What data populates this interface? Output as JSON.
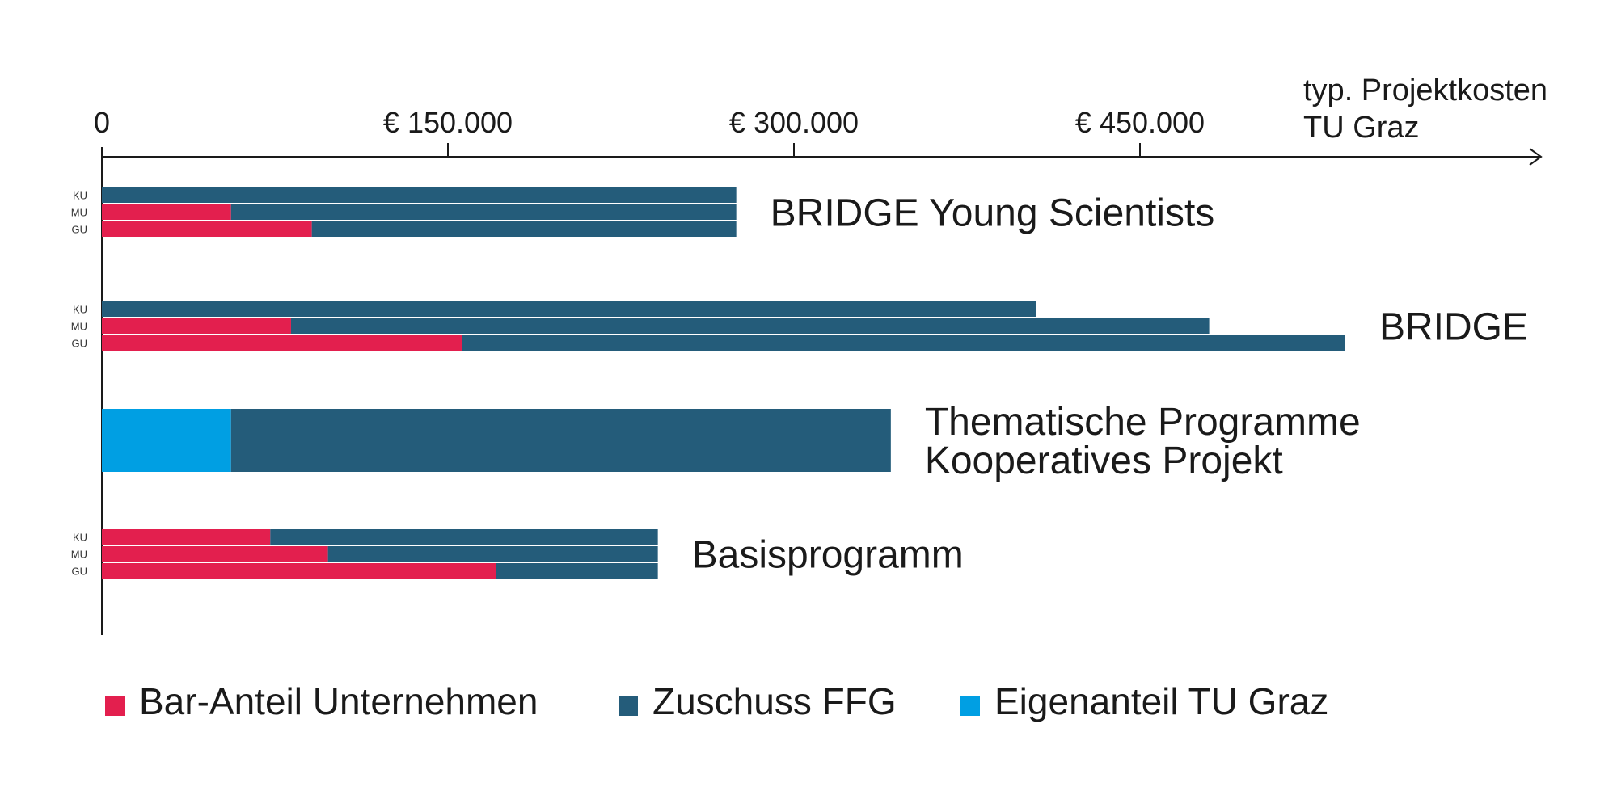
{
  "chart_data": {
    "type": "bar",
    "orientation": "horizontal",
    "stacked": true,
    "xlim": [
      0,
      630000
    ],
    "x_ticks": [
      {
        "value": 0,
        "label": "0"
      },
      {
        "value": 150000,
        "label": "€ 150.000"
      },
      {
        "value": 300000,
        "label": "€ 300.000"
      },
      {
        "value": 450000,
        "label": "€ 450.000"
      }
    ],
    "axis_title": [
      "typ. Projektkosten",
      "TU Graz"
    ],
    "grid": false,
    "legend_position": "bottom-left",
    "series": [
      {
        "key": "bar",
        "name": "Bar-Anteil Unternehmen",
        "color": "#E31F4E"
      },
      {
        "key": "ffg",
        "name": "Zuschuss FFG",
        "color": "#245C7A"
      },
      {
        "key": "eigen",
        "name": "Eigenanteil TU Graz",
        "color": "#009FE3"
      }
    ],
    "groups": [
      {
        "label": [
          "BRIDGE Young Scientists"
        ],
        "rows": [
          {
            "label": "KU",
            "segments": {
              "bar": 0,
              "ffg": 275000
            }
          },
          {
            "label": "MU",
            "segments": {
              "bar": 56000,
              "ffg": 219000
            }
          },
          {
            "label": "GU",
            "segments": {
              "bar": 91000,
              "ffg": 184000
            }
          }
        ]
      },
      {
        "label": [
          "BRIDGE"
        ],
        "rows": [
          {
            "label": "KU",
            "segments": {
              "bar": 0,
              "ffg": 405000
            }
          },
          {
            "label": "MU",
            "segments": {
              "bar": 82000,
              "ffg": 398000
            }
          },
          {
            "label": "GU",
            "segments": {
              "bar": 156000,
              "ffg": 383000
            }
          }
        ]
      },
      {
        "label": [
          "Thematische Programme",
          "Kooperatives Projekt"
        ],
        "rows": [
          {
            "label": "",
            "segments": {
              "eigen": 56000,
              "ffg": 286000
            }
          }
        ]
      },
      {
        "label": [
          "Basisprogramm"
        ],
        "rows": [
          {
            "label": "KU",
            "segments": {
              "bar": 73000,
              "ffg": 168000
            }
          },
          {
            "label": "MU",
            "segments": {
              "bar": 98000,
              "ffg": 143000
            }
          },
          {
            "label": "GU",
            "segments": {
              "bar": 171000,
              "ffg": 70000
            }
          }
        ]
      }
    ]
  }
}
